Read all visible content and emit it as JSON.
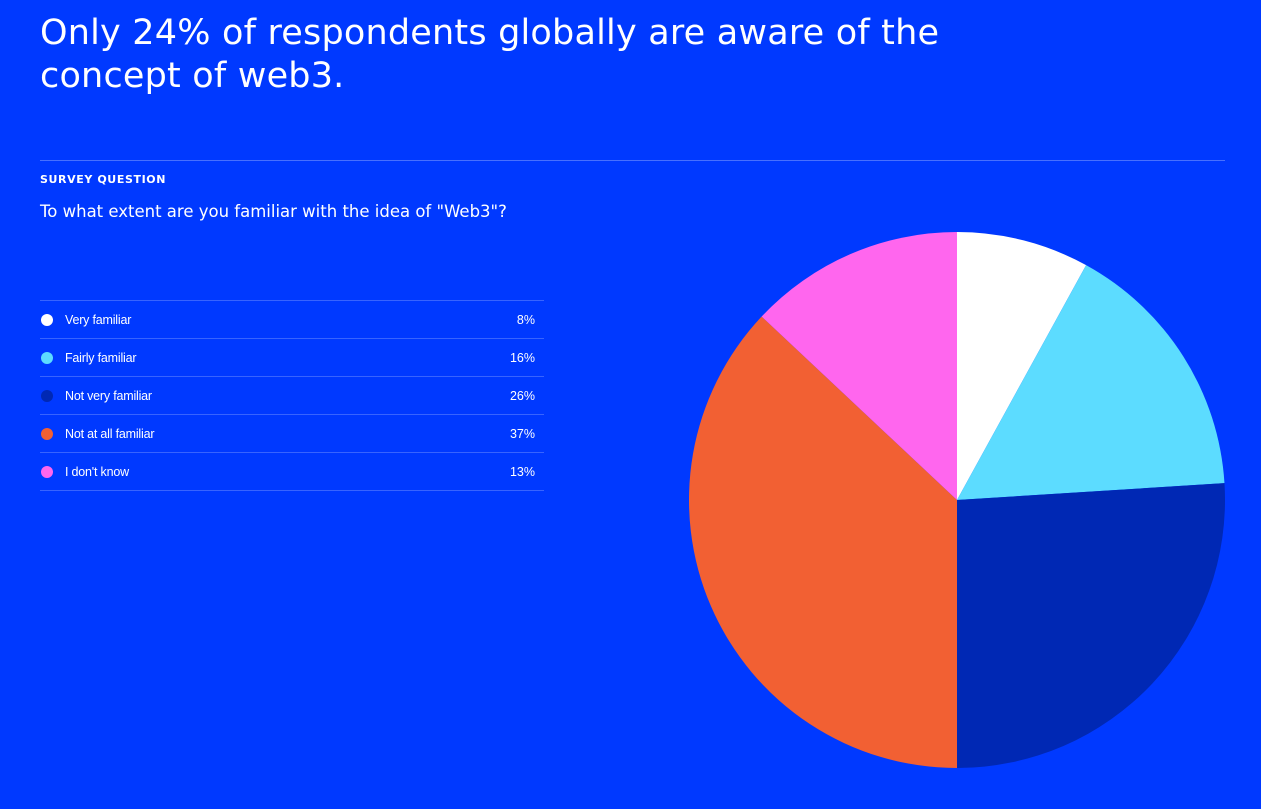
{
  "headline": "Only 24% of respondents globally are aware of the concept of web3.",
  "survey": {
    "label": "SURVEY QUESTION",
    "question": "To what extent are you familiar with the idea of \"Web3\"?"
  },
  "chart_data": {
    "type": "pie",
    "categories": [
      "Very familiar",
      "Fairly familiar",
      "Not very familiar",
      "Not at all familiar",
      "I don't know"
    ],
    "values": [
      8,
      16,
      26,
      37,
      13
    ],
    "value_labels": [
      "8%",
      "16%",
      "26%",
      "37%",
      "13%"
    ],
    "colors": [
      "#ffffff",
      "#5cdcff",
      "#0028b4",
      "#f26033",
      "#ff66ee"
    ],
    "start": "12 o'clock",
    "direction": "clockwise",
    "legend_placement": "left"
  },
  "colors": {
    "background": "#0039ff",
    "text": "#ffffff"
  }
}
